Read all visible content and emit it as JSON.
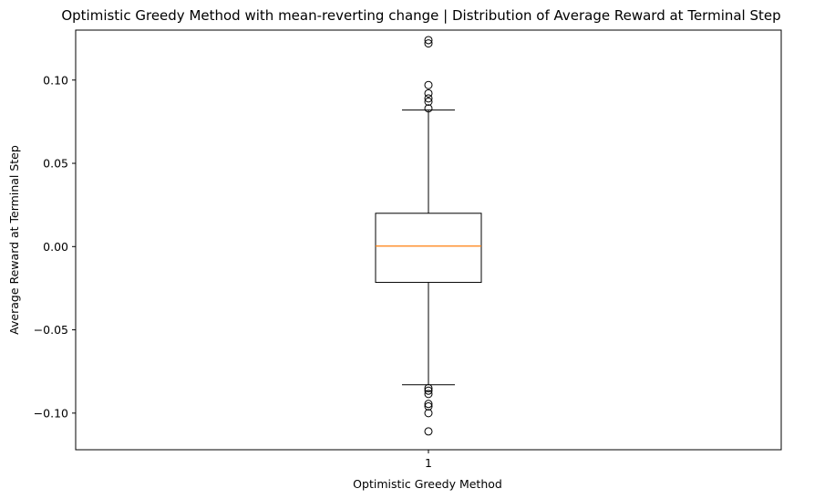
{
  "chart_data": {
    "type": "box",
    "title": "Optimistic Greedy Method with mean-reverting change | Distribution of Average Reward at Terminal Step",
    "xlabel": "Optimistic Greedy Method",
    "ylabel": "Average Reward at Terminal Step",
    "categories": [
      "1"
    ],
    "ylim": [
      -0.122,
      0.13
    ],
    "yticks": [
      -0.1,
      -0.05,
      0.0,
      0.05,
      0.1
    ],
    "ytick_labels": [
      "−0.10",
      "−0.05",
      "0.00",
      "0.05",
      "0.10"
    ],
    "grid": false,
    "boxes": [
      {
        "category": "1",
        "whisker_low": -0.083,
        "q1": -0.0215,
        "median": 0.0003,
        "q3": 0.02,
        "whisker_high": 0.082,
        "outliers": [
          0.124,
          0.122,
          0.097,
          0.092,
          0.089,
          0.087,
          0.083,
          -0.085,
          -0.0865,
          -0.0885,
          -0.0945,
          -0.096,
          -0.1,
          -0.111
        ]
      }
    ],
    "colors": {
      "box": "#000000",
      "median": "#ff7f0e",
      "flier": "#000000"
    }
  }
}
